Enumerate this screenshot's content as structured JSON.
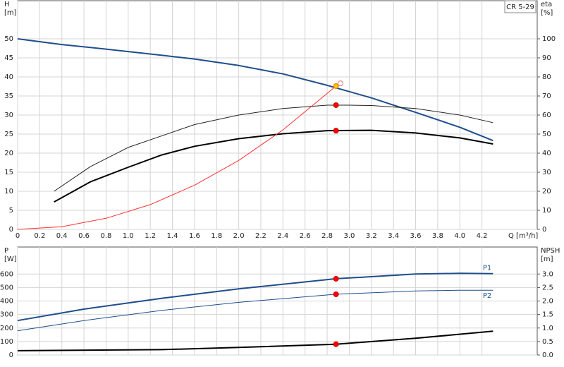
{
  "chart_data": [
    {
      "type": "line",
      "title": "CR 5-29",
      "ylabel": [
        "H",
        "[m]"
      ],
      "y2label": [
        "eta",
        "[%]"
      ],
      "xlabel": "Q [m³/h]",
      "xlim": [
        0,
        4.7
      ],
      "xticks": [
        0,
        0.2,
        0.4,
        0.6,
        0.8,
        {
          "value": 1,
          "label": "1.0"
        },
        1.2,
        1.4,
        1.6,
        1.8,
        {
          "value": 2,
          "label": "2.0"
        },
        2.2,
        2.4,
        2.6,
        2.8,
        {
          "value": 3,
          "label": "3.0"
        },
        3.2,
        3.4,
        3.6,
        3.8,
        {
          "value": 4,
          "label": "4.0"
        },
        4.2
      ],
      "ylim": [
        0,
        60
      ],
      "yticks": [
        0,
        5,
        10,
        15,
        20,
        25,
        30,
        35,
        40,
        45,
        50
      ],
      "y2lim": [
        0,
        120
      ],
      "y2ticks": [
        0,
        10,
        20,
        30,
        40,
        50,
        60,
        70,
        80,
        90,
        100
      ],
      "grid": true,
      "series": [
        {
          "color": "#1f4e8c",
          "width": 2,
          "x": [
            0,
            0.4,
            0.8,
            1.3,
            1.6,
            2.0,
            2.4,
            2.8,
            3.2,
            3.6,
            4.0,
            4.3
          ],
          "values": [
            50,
            48.5,
            47.3,
            45.7,
            44.7,
            43,
            40.8,
            37.8,
            34.5,
            30.7,
            26.8,
            23.3
          ]
        },
        {
          "color": "#222222",
          "width": 1,
          "axis": "y2",
          "x": [
            0.33,
            0.66,
            1.0,
            1.4,
            1.6,
            2.0,
            2.4,
            2.8,
            3.0,
            3.2,
            3.6,
            4.0,
            4.3
          ],
          "values": [
            20,
            33,
            43,
            51,
            55,
            60,
            63.4,
            65.2,
            65.2,
            65,
            63.4,
            60,
            56
          ]
        },
        {
          "color": "#000000",
          "width": 2,
          "axis": "y2",
          "x": [
            0.33,
            0.66,
            1.0,
            1.3,
            1.6,
            2.0,
            2.4,
            2.8,
            3.2,
            3.6,
            4.0,
            4.3
          ],
          "values": [
            14.4,
            25,
            32.6,
            39,
            43.6,
            47.6,
            50.2,
            51.8,
            52,
            50.6,
            48,
            44.8
          ]
        },
        {
          "color": "#ff3030",
          "width": 1,
          "x": [
            0,
            0.4,
            0.8,
            1.2,
            1.6,
            2.0,
            2.4,
            2.88
          ],
          "values": [
            0,
            0.7,
            2.9,
            6.5,
            11.6,
            18.1,
            26.1,
            37.6
          ]
        },
        {
          "style": "point",
          "color": "#ff0000",
          "stroke": "#cc0000",
          "axis": "y2",
          "x": [
            2.88
          ],
          "values": [
            65.2
          ]
        },
        {
          "style": "point",
          "color": "#ff0000",
          "stroke": "#cc0000",
          "axis": "y2",
          "x": [
            2.88
          ],
          "values": [
            51.8
          ]
        },
        {
          "style": "point",
          "color": "#ffffff",
          "stroke": "#e07070",
          "x": [
            2.92
          ],
          "values": [
            38.3
          ]
        },
        {
          "style": "point",
          "color": "#ffc000",
          "stroke": "#e08000",
          "x": [
            2.88
          ],
          "values": [
            37.6
          ]
        }
      ]
    },
    {
      "type": "line",
      "ylabel": [
        "P",
        "[W]"
      ],
      "y2label": [
        "NPSH",
        "[m]"
      ],
      "xlim": [
        0,
        4.7
      ],
      "xticks": [
        0,
        0.2,
        0.4,
        0.6,
        0.8,
        1,
        1.2,
        1.4,
        1.6,
        1.8,
        2,
        2.2,
        2.4,
        2.6,
        2.8,
        3,
        3.2,
        3.4,
        3.6,
        3.8,
        4,
        4.2
      ],
      "ylim": [
        0,
        800
      ],
      "yticks": [
        0,
        100,
        200,
        300,
        400,
        500,
        600
      ],
      "y2lim": [
        0,
        4
      ],
      "y2ticks": [
        {
          "value": 0,
          "label": "0.0"
        },
        0.5,
        {
          "value": 1,
          "label": "1.0"
        },
        1.5,
        {
          "value": 2,
          "label": "2.0"
        },
        2.5,
        {
          "value": 3,
          "label": "3.0"
        }
      ],
      "grid": true,
      "series": [
        {
          "label": "P1",
          "color": "#1f4e8c",
          "width": 2,
          "x": [
            0,
            0.6,
            1.3,
            2.0,
            2.88,
            3.6,
            4.0,
            4.3
          ],
          "values": [
            255,
            340,
            420,
            490,
            565,
            600,
            605,
            603
          ]
        },
        {
          "label": "P2",
          "color": "#1f4e8c",
          "width": 1,
          "x": [
            0,
            0.6,
            1.3,
            2.0,
            2.88,
            3.6,
            4.0,
            4.3
          ],
          "values": [
            180,
            255,
            330,
            390,
            450,
            475,
            480,
            480
          ]
        },
        {
          "color": "#000000",
          "width": 2,
          "axis": "y2",
          "x": [
            0,
            1.3,
            2.0,
            2.88,
            3.6,
            4.3
          ],
          "values": [
            0.16,
            0.2,
            0.28,
            0.4,
            0.62,
            0.88
          ]
        },
        {
          "style": "point",
          "color": "#ff0000",
          "stroke": "#cc0000",
          "x": [
            2.88
          ],
          "values": [
            565
          ]
        },
        {
          "style": "point",
          "color": "#ff0000",
          "stroke": "#cc0000",
          "x": [
            2.88
          ],
          "values": [
            450
          ]
        },
        {
          "style": "point",
          "color": "#ff0000",
          "stroke": "#cc0000",
          "axis": "y2",
          "x": [
            2.88
          ],
          "values": [
            0.4
          ]
        }
      ]
    }
  ]
}
